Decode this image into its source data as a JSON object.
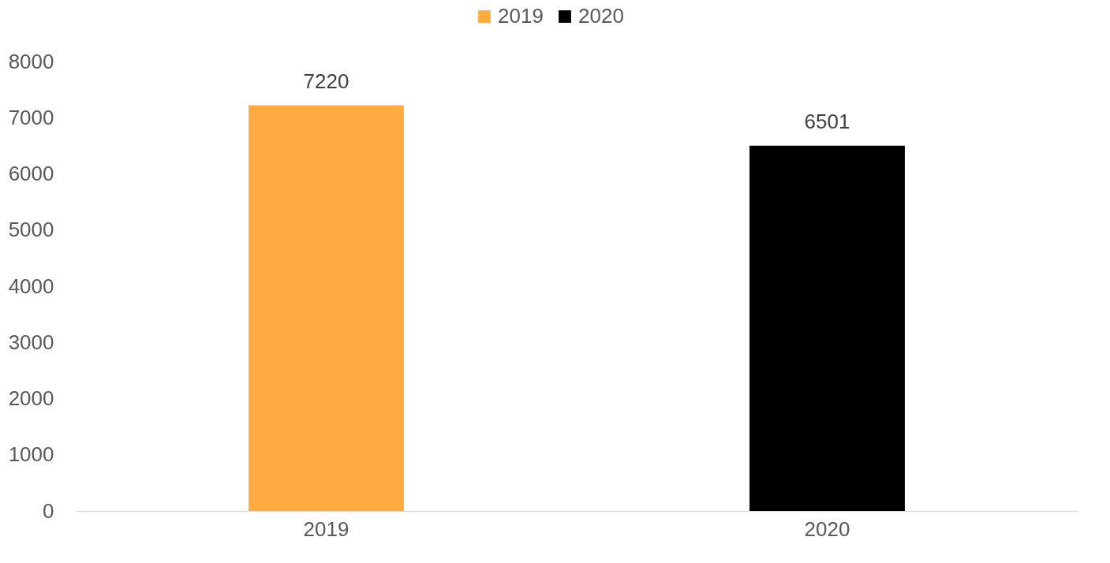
{
  "chart_data": {
    "type": "bar",
    "categories": [
      "2019",
      "2020"
    ],
    "series": [
      {
        "name": "2019",
        "color": "#ffab40",
        "values": [
          7220,
          null
        ]
      },
      {
        "name": "2020",
        "color": "#000000",
        "values": [
          null,
          6501
        ]
      }
    ],
    "ylim": [
      0,
      8000
    ],
    "yticks": [
      0,
      1000,
      2000,
      3000,
      4000,
      5000,
      6000,
      7000,
      8000
    ],
    "grid": false,
    "legend": "top",
    "data_labels": true
  }
}
